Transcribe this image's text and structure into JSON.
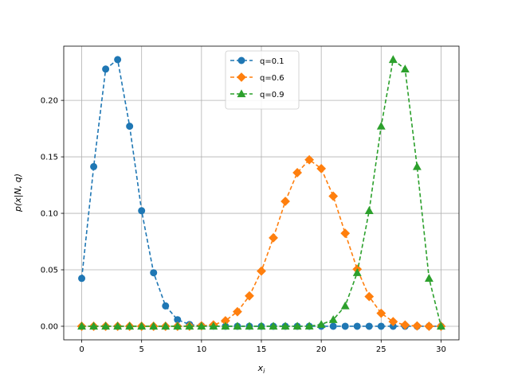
{
  "chart_data": {
    "type": "line",
    "xlabel": "x_i",
    "ylabel": "p(x|N, q)",
    "xlim": [
      -1.5,
      31.5
    ],
    "ylim": [
      -0.012,
      0.248
    ],
    "xticks": [
      0,
      5,
      10,
      15,
      20,
      25,
      30
    ],
    "yticks": [
      0.0,
      0.05,
      0.1,
      0.15,
      0.2
    ],
    "xtick_labels": [
      "0",
      "5",
      "10",
      "15",
      "20",
      "25",
      "30"
    ],
    "ytick_labels": [
      "0.00",
      "0.05",
      "0.10",
      "0.15",
      "0.20"
    ],
    "grid": true,
    "legend_position": "top-center",
    "x": [
      0,
      1,
      2,
      3,
      4,
      5,
      6,
      7,
      8,
      9,
      10,
      11,
      12,
      13,
      14,
      15,
      16,
      17,
      18,
      19,
      20,
      21,
      22,
      23,
      24,
      25,
      26,
      27,
      28,
      29,
      30
    ],
    "series": [
      {
        "name": "q=0.1",
        "color": "#1f77b4",
        "marker": "circle",
        "linestyle": "dashed",
        "values": [
          0.0424,
          0.1413,
          0.2277,
          0.2361,
          0.1771,
          0.1023,
          0.0474,
          0.018,
          0.0058,
          0.0016,
          0.0004,
          0.0001,
          0,
          0,
          0,
          0,
          0,
          0,
          0,
          0,
          0,
          0,
          0,
          0,
          0,
          0,
          0,
          0,
          0,
          0,
          0
        ]
      },
      {
        "name": "q=0.6",
        "color": "#ff7f0e",
        "marker": "diamond",
        "linestyle": "dashed",
        "values": [
          0,
          0,
          0,
          0,
          0,
          0,
          0,
          0,
          0,
          0.0001,
          0.0004,
          0.0012,
          0.0049,
          0.0129,
          0.0269,
          0.0489,
          0.0783,
          0.1106,
          0.136,
          0.1474,
          0.1396,
          0.1152,
          0.0823,
          0.0505,
          0.0263,
          0.0115,
          0.0041,
          0.0011,
          0.0003,
          0,
          0
        ]
      },
      {
        "name": "q=0.9",
        "color": "#2ca02c",
        "marker": "triangle",
        "linestyle": "dashed",
        "values": [
          0,
          0,
          0,
          0,
          0,
          0,
          0,
          0,
          0,
          0,
          0,
          0,
          0,
          0,
          0,
          0,
          0,
          0,
          0,
          0.0001,
          0.0016,
          0.0058,
          0.018,
          0.0474,
          0.1023,
          0.1771,
          0.2361,
          0.2277,
          0.1413,
          0.0424,
          0
        ]
      }
    ]
  }
}
